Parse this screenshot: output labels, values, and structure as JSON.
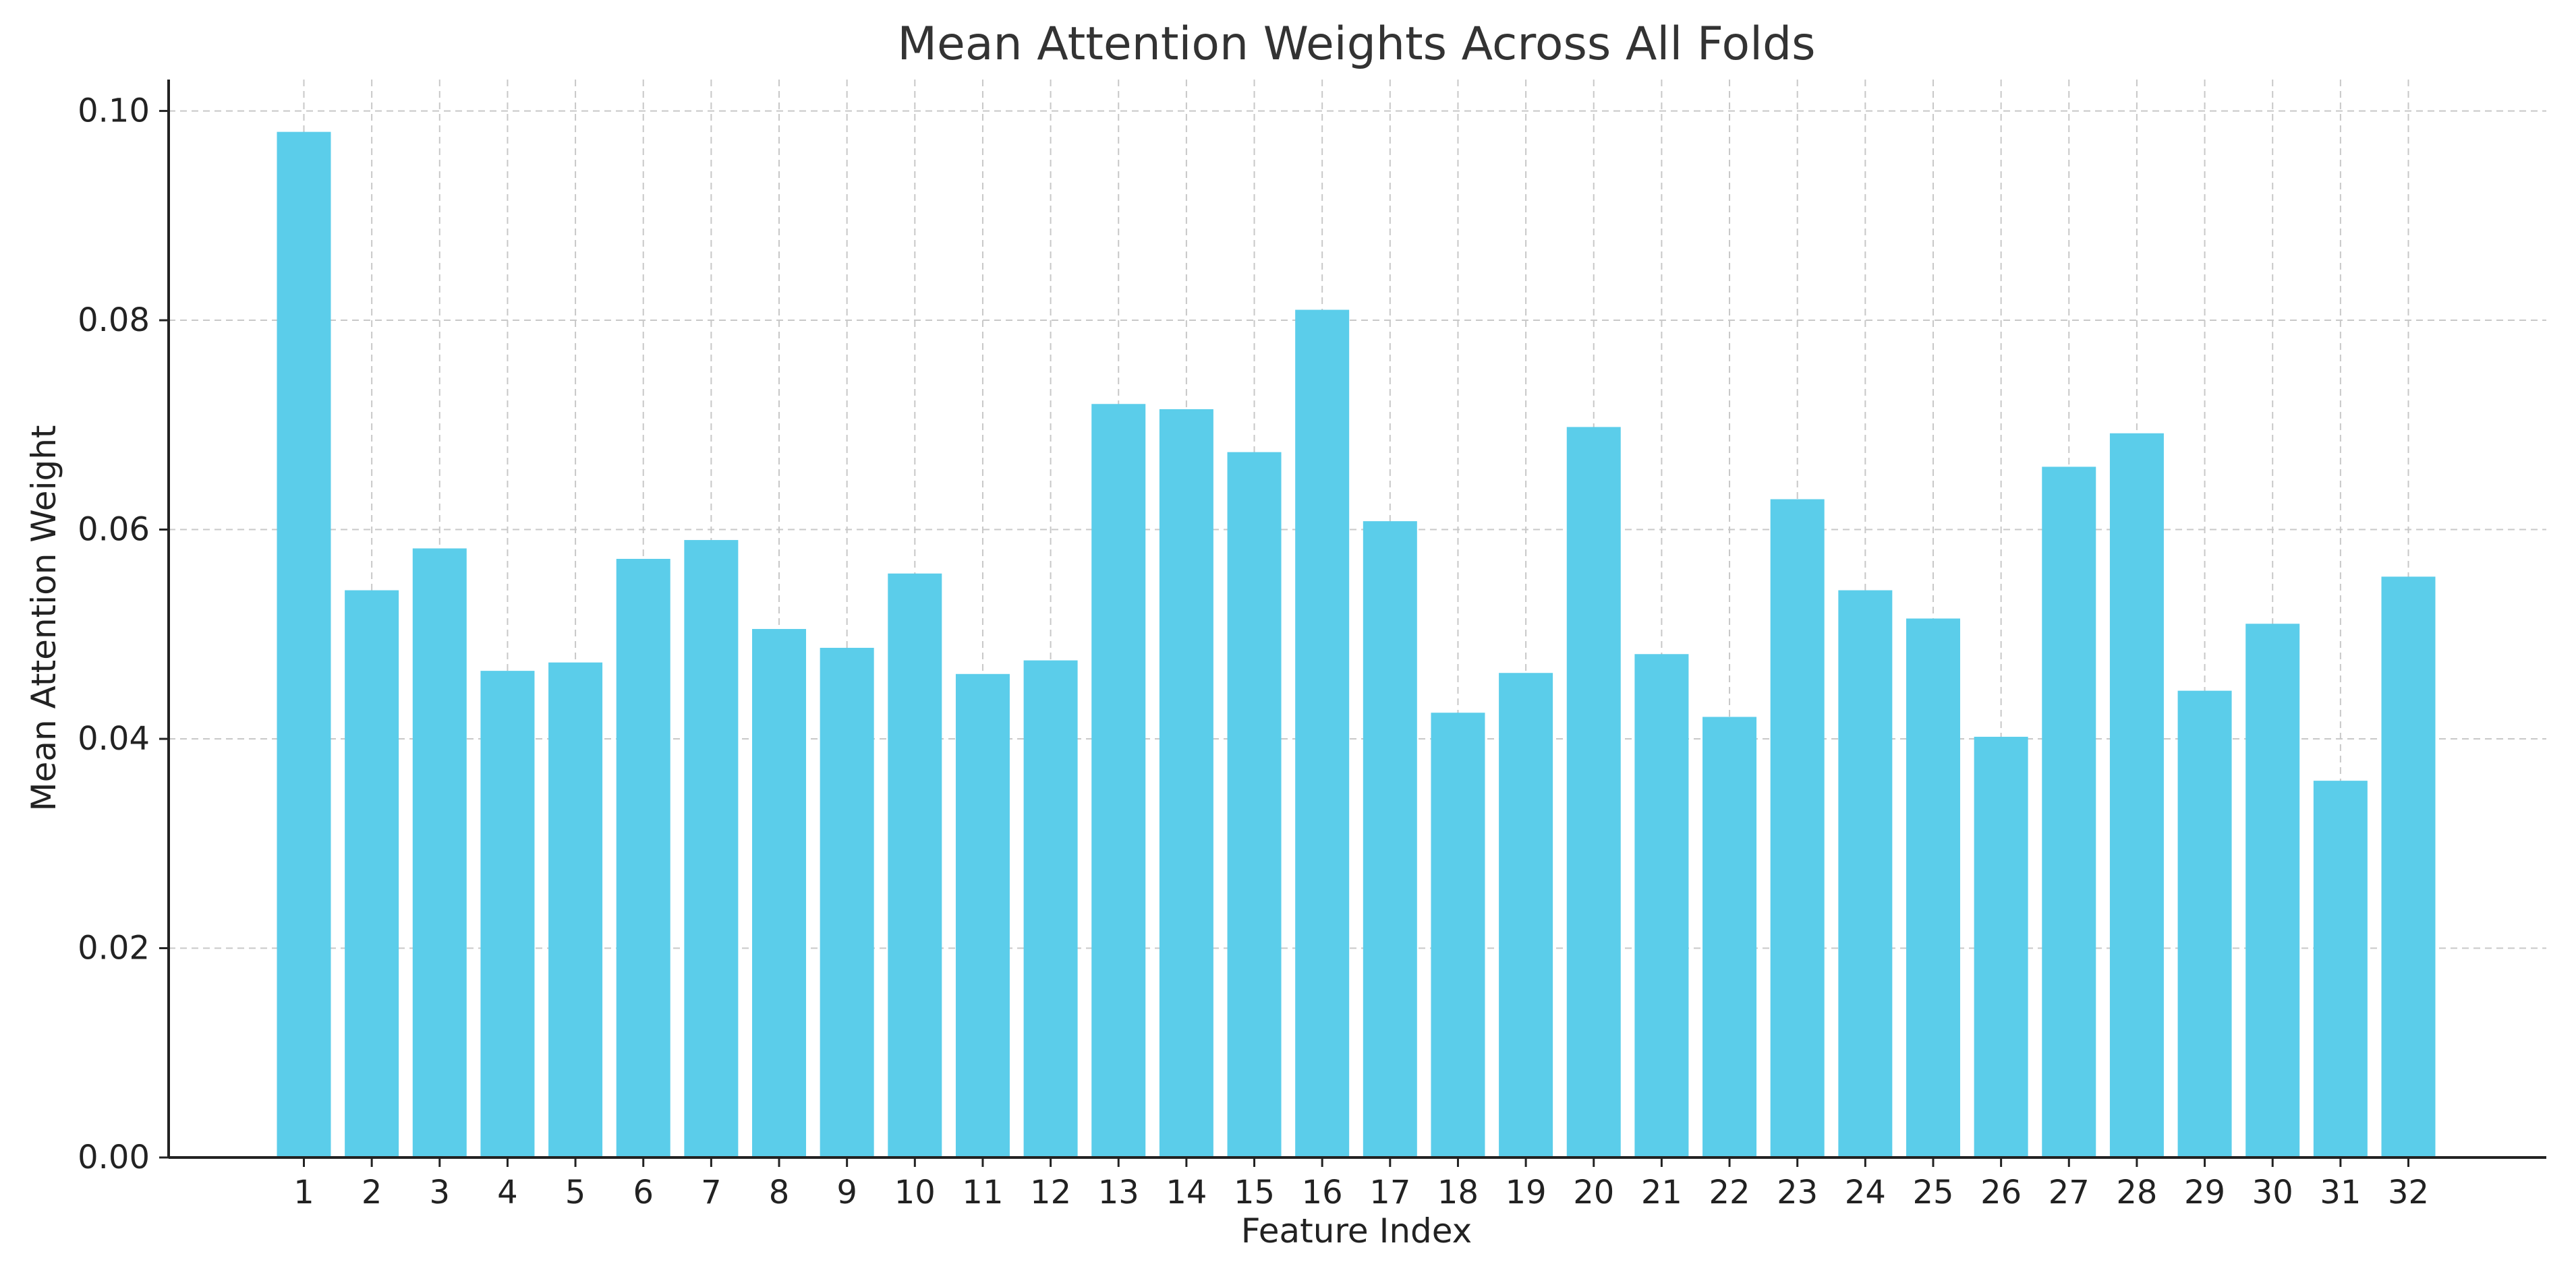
{
  "chart_data": {
    "type": "bar",
    "title": "Mean Attention Weights Across All Folds",
    "xlabel": "Feature Index",
    "ylabel": "Mean Attention Weight",
    "categories": [
      "1",
      "2",
      "3",
      "4",
      "5",
      "6",
      "7",
      "8",
      "9",
      "10",
      "11",
      "12",
      "13",
      "14",
      "15",
      "16",
      "17",
      "18",
      "19",
      "20",
      "21",
      "22",
      "23",
      "24",
      "25",
      "26",
      "27",
      "28",
      "29",
      "30",
      "31",
      "32"
    ],
    "values": [
      0.098,
      0.0542,
      0.0582,
      0.0465,
      0.0473,
      0.0572,
      0.059,
      0.0505,
      0.0487,
      0.0558,
      0.0462,
      0.0475,
      0.072,
      0.0715,
      0.0674,
      0.081,
      0.0608,
      0.0425,
      0.0463,
      0.0698,
      0.0481,
      0.0421,
      0.0629,
      0.0542,
      0.0515,
      0.0402,
      0.066,
      0.0692,
      0.0446,
      0.051,
      0.036,
      0.0555
    ],
    "ylim": [
      0,
      0.103
    ],
    "yticks": [
      "0.00",
      "0.02",
      "0.04",
      "0.06",
      "0.08",
      "0.10"
    ],
    "ytick_values": [
      0,
      0.02,
      0.04,
      0.06,
      0.08,
      0.1
    ],
    "grid": true,
    "bar_color": "#5bcdea"
  }
}
